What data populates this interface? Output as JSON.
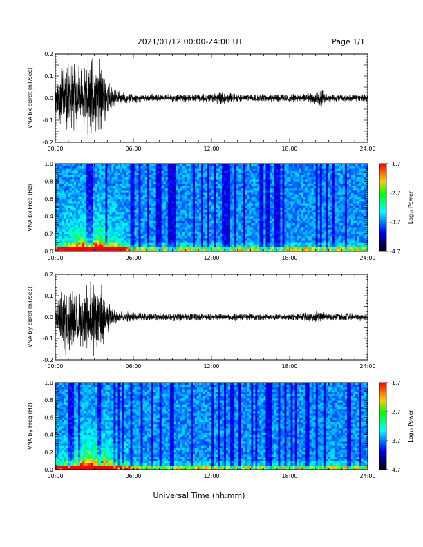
{
  "header": {
    "title": "2021/01/12  00:00-24:00 UT",
    "page": "Page 1/1"
  },
  "x_axis_label": "Universal Time (hh:mm)",
  "colorbar": {
    "label": "Log₁₀ Power",
    "ticks": [
      "-1.7",
      "-2.7",
      "-3.7",
      "-4.7"
    ],
    "colors": [
      "#ff0000",
      "#ffff00",
      "#00ff00",
      "#00ffff",
      "#0000ff",
      "#000000"
    ]
  },
  "chart_data": [
    {
      "type": "line",
      "ylabel": "VNA bx dB/dt (nT/sec)",
      "xlim": [
        "00:00",
        "24:00"
      ],
      "ylim": [
        -0.2,
        0.2
      ],
      "x_ticks": [
        "00:00",
        "06:00",
        "12:00",
        "18:00",
        "24:00"
      ],
      "y_ticks": [
        "0.2",
        "0.1",
        "0.0",
        "-0.1",
        "-0.2"
      ],
      "envelope": {
        "x_hours": [
          0,
          0.5,
          1,
          1.5,
          2,
          2.5,
          3,
          3.5,
          4,
          4.5,
          5,
          6,
          7,
          8,
          9,
          10,
          11,
          12,
          12.8,
          13,
          14,
          15,
          16,
          17,
          18,
          19,
          20,
          20.5,
          21,
          22,
          23,
          24
        ],
        "amplitude": [
          0.08,
          0.2,
          0.2,
          0.2,
          0.16,
          0.2,
          0.2,
          0.2,
          0.1,
          0.05,
          0.03,
          0.025,
          0.02,
          0.02,
          0.02,
          0.02,
          0.02,
          0.02,
          0.04,
          0.03,
          0.02,
          0.02,
          0.02,
          0.02,
          0.02,
          0.02,
          0.03,
          0.05,
          0.02,
          0.02,
          0.02,
          0.02
        ]
      }
    },
    {
      "type": "heatmap",
      "ylabel": "VNA bx Freq (Hz)",
      "xlim": [
        "00:00",
        "24:00"
      ],
      "ylim": [
        0.0,
        1.0
      ],
      "x_ticks": [
        "00:00",
        "06:00",
        "12:00",
        "18:00",
        "24:00"
      ],
      "y_ticks": [
        "1.0",
        "0.8",
        "0.6",
        "0.4",
        "0.2",
        "0.0"
      ],
      "color_range": [
        -4.7,
        -1.7
      ]
    },
    {
      "type": "line",
      "ylabel": "VNA by dB/dt (nT/sec)",
      "xlim": [
        "00:00",
        "24:00"
      ],
      "ylim": [
        -0.2,
        0.2
      ],
      "x_ticks": [
        "00:00",
        "06:00",
        "12:00",
        "18:00",
        "24:00"
      ],
      "y_ticks": [
        "0.2",
        "0.1",
        "0.0",
        "-0.1",
        "-0.2"
      ],
      "envelope": {
        "x_hours": [
          0,
          0.5,
          1,
          1.5,
          2,
          2.5,
          3,
          3.5,
          4,
          4.5,
          5,
          6,
          7,
          8,
          9,
          10,
          11,
          12,
          13,
          14,
          15,
          16,
          17,
          18,
          19,
          20,
          21,
          22,
          23,
          24
        ],
        "amplitude": [
          0.05,
          0.16,
          0.2,
          0.12,
          0.14,
          0.2,
          0.2,
          0.2,
          0.08,
          0.04,
          0.03,
          0.025,
          0.02,
          0.02,
          0.02,
          0.02,
          0.02,
          0.02,
          0.02,
          0.02,
          0.02,
          0.02,
          0.02,
          0.02,
          0.02,
          0.03,
          0.02,
          0.02,
          0.02,
          0.02
        ]
      }
    },
    {
      "type": "heatmap",
      "ylabel": "VNA by Freq (Hz)",
      "xlim": [
        "00:00",
        "24:00"
      ],
      "ylim": [
        0.0,
        1.0
      ],
      "x_ticks": [
        "00:00",
        "06:00",
        "12:00",
        "18:00",
        "24:00"
      ],
      "y_ticks": [
        "1.0",
        "0.8",
        "0.6",
        "0.4",
        "0.2",
        "0.0"
      ],
      "color_range": [
        -4.7,
        -1.7
      ]
    }
  ]
}
